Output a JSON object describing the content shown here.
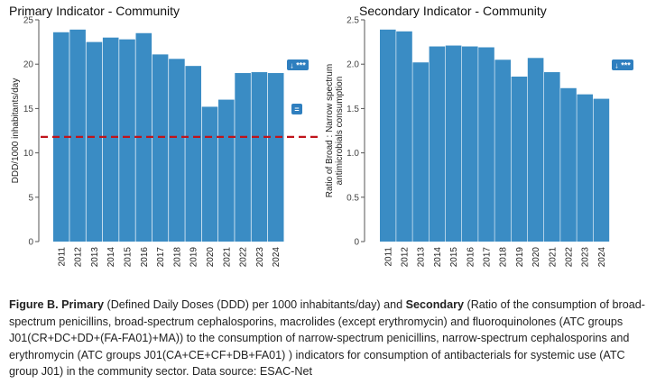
{
  "chart_data": [
    {
      "type": "bar",
      "title": "Primary Indicator - Community",
      "xlabel": "",
      "ylabel": "DDD/1000 inhabitants/day",
      "categories": [
        "2011",
        "2012",
        "2013",
        "2014",
        "2015",
        "2016",
        "2017",
        "2018",
        "2019",
        "2020",
        "2021",
        "2022",
        "2023",
        "2024"
      ],
      "values": [
        23.6,
        23.9,
        22.5,
        23.0,
        22.8,
        23.5,
        21.1,
        20.6,
        19.8,
        15.2,
        16.0,
        19.0,
        19.1,
        19.0
      ],
      "ylim": [
        0,
        25
      ],
      "yticks": [
        "0",
        "5",
        "10",
        "15",
        "20",
        "25"
      ],
      "target_line": {
        "value": 11.8,
        "color": "#c0141b",
        "style": "dashed"
      },
      "badges": [
        {
          "text": "↓ ***",
          "meaning": "significant decrease"
        },
        {
          "text": "=",
          "meaning": "no change"
        }
      ],
      "bar_color": "#3a8cc4",
      "grid": false
    },
    {
      "type": "bar",
      "title": "Secondary Indicator - Community",
      "xlabel": "",
      "ylabel_lines": [
        "Ratio of Broad : Narrow spectrum",
        "antimicrobials consumption"
      ],
      "categories": [
        "2011",
        "2012",
        "2013",
        "2014",
        "2015",
        "2016",
        "2017",
        "2018",
        "2019",
        "2020",
        "2021",
        "2022",
        "2023",
        "2024"
      ],
      "values": [
        2.39,
        2.37,
        2.02,
        2.2,
        2.21,
        2.2,
        2.19,
        2.05,
        1.86,
        2.07,
        1.91,
        1.73,
        1.66,
        1.61
      ],
      "ylim": [
        0,
        2.5
      ],
      "yticks": [
        "0",
        "0.5",
        "1.0",
        "1.5",
        "2.0",
        "2.5"
      ],
      "badges": [
        {
          "text": "↓ ***",
          "meaning": "significant decrease"
        }
      ],
      "bar_color": "#3a8cc4",
      "grid": false
    }
  ],
  "caption": {
    "figure_label": "Figure B.",
    "primary_label": "Primary",
    "primary_text": " (Defined Daily Doses (DDD) per 1000 inhabitants/day) and ",
    "secondary_label": "Secondary",
    "secondary_text": " (Ratio of the consumption of broad-spectrum penicillins, broad-spectrum cephalosporins, macrolides (except erythromycin) and fluoroquinolones (ATC groups J01(CR+DC+DD+(FA-FA01)+MA)) to the consumption of narrow-spectrum penicillins, narrow-spectrum cephalosporins and erythromycin (ATC groups J01(CA+CE+CF+DB+FA01) ) indicators for consumption of antibacterials for systemic use (ATC group J01) in the community sector. Data source: ESAC-Net"
  }
}
